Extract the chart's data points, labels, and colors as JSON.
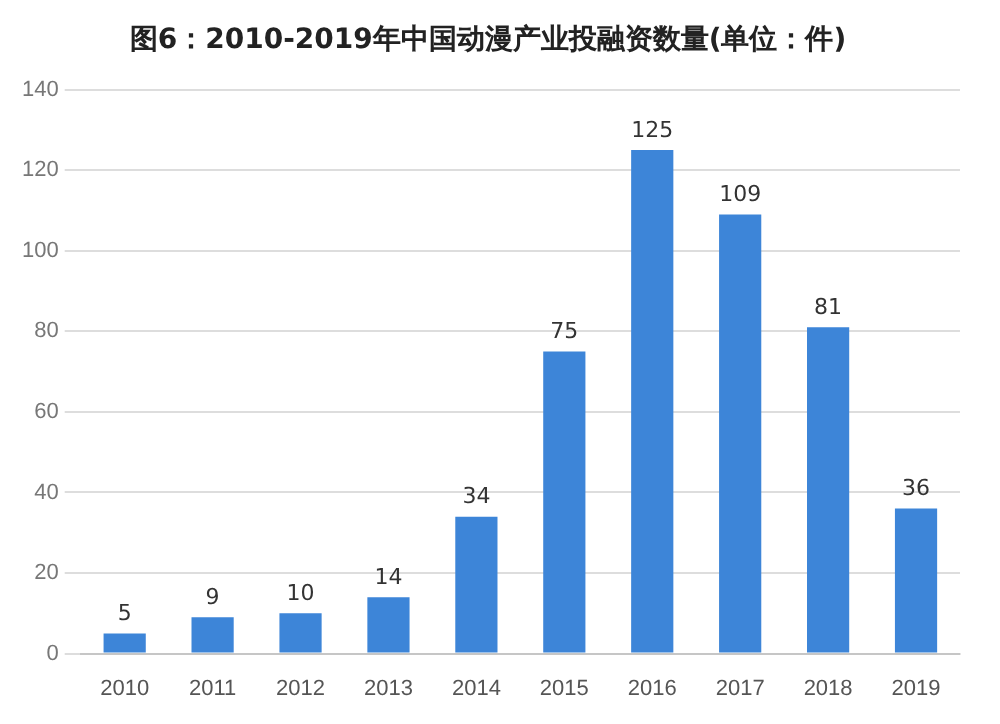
{
  "chart_data": {
    "type": "bar",
    "title": "图6：2010-2019年中国动漫产业投融资数量(单位：件)",
    "categories": [
      "2010",
      "2011",
      "2012",
      "2013",
      "2014",
      "2015",
      "2016",
      "2017",
      "2018",
      "2019"
    ],
    "values": [
      5,
      9,
      10,
      14,
      34,
      75,
      125,
      109,
      81,
      36
    ],
    "color": "#3d85d8",
    "ylim": [
      0,
      140
    ],
    "yticks": [
      0,
      20,
      40,
      60,
      80,
      100,
      120,
      140
    ],
    "grid": "y",
    "data_labels": true
  }
}
